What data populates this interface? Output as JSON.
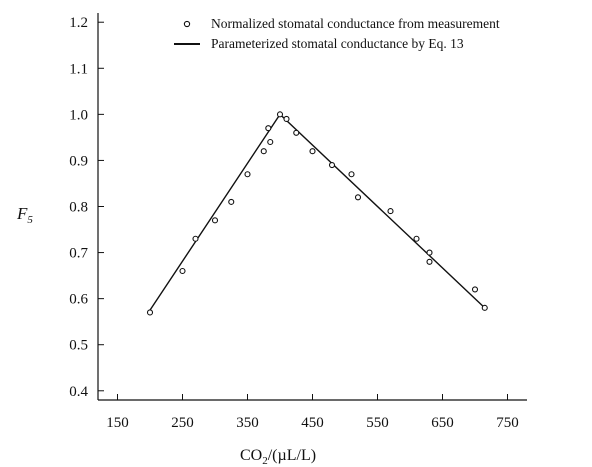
{
  "chart_data": {
    "type": "scatter",
    "xlabel": {
      "base": "CO",
      "sub": "2",
      "rest": "/(µL/L)"
    },
    "ylabel": {
      "main": "F",
      "sub": "5"
    },
    "xlim": [
      120,
      780
    ],
    "ylim": [
      0.38,
      1.22
    ],
    "xticks": [
      150,
      250,
      350,
      450,
      550,
      650,
      750
    ],
    "yticks": [
      0.4,
      0.5,
      0.6,
      0.7,
      0.8,
      0.9,
      1.0,
      1.1,
      1.2
    ],
    "ytick_labels": [
      "0.4",
      "0.5",
      "0.6",
      "0.7",
      "0.8",
      "0.9",
      "1.0",
      "1.1",
      "1.2"
    ],
    "grid": false,
    "legend_position": "top-right",
    "series": [
      {
        "name": "Normalized stomatal conductance from measurement",
        "kind": "markers",
        "marker": "open-circle",
        "points": [
          [
            200,
            0.57
          ],
          [
            250,
            0.66
          ],
          [
            270,
            0.73
          ],
          [
            300,
            0.77
          ],
          [
            325,
            0.81
          ],
          [
            350,
            0.87
          ],
          [
            375,
            0.92
          ],
          [
            382,
            0.97
          ],
          [
            385,
            0.94
          ],
          [
            400,
            1.0
          ],
          [
            410,
            0.99
          ],
          [
            425,
            0.96
          ],
          [
            450,
            0.92
          ],
          [
            480,
            0.89
          ],
          [
            510,
            0.87
          ],
          [
            520,
            0.82
          ],
          [
            570,
            0.79
          ],
          [
            610,
            0.73
          ],
          [
            630,
            0.7
          ],
          [
            630,
            0.68
          ],
          [
            700,
            0.62
          ],
          [
            715,
            0.58
          ]
        ]
      },
      {
        "name": "Parameterized stomatal conductance by Eq. 13",
        "kind": "line",
        "points": [
          [
            200,
            0.575
          ],
          [
            400,
            1.0
          ],
          [
            715,
            0.58
          ]
        ]
      }
    ]
  }
}
